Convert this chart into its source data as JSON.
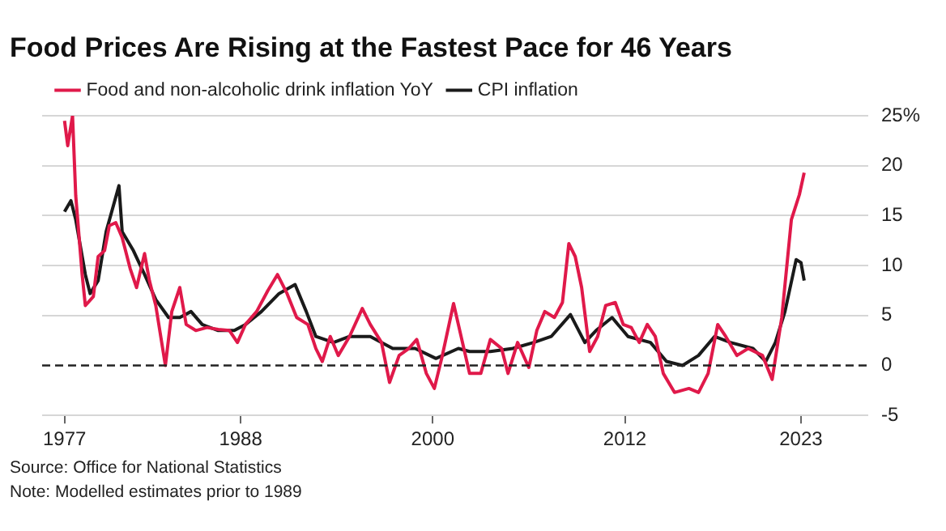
{
  "chart_data": {
    "type": "line",
    "title": "Food Prices Are Rising at the Fastest Pace for 46 Years",
    "annotations": [
      "Source: Office for National Statistics",
      "Note: Modelled estimates prior to 1989"
    ],
    "xlim": [
      1975.6,
      2027.2
    ],
    "xticks": [
      1977,
      1988,
      2000,
      2012,
      2023
    ],
    "ylim": [
      -5,
      25
    ],
    "yticks": [
      -5,
      0,
      5,
      10,
      15,
      20,
      {
        "value": 25,
        "label": "25%"
      }
    ],
    "grid": "y",
    "legend": "top left",
    "marker": "none",
    "line_style": "solid",
    "ref_lines": [
      {
        "axis": "y",
        "value": 0,
        "label": null,
        "color": "#222222",
        "line_style": "dashed"
      }
    ],
    "series": [
      {
        "name": "Food and non-alcoholic drink inflation YoY",
        "color": "#e0194a",
        "x": [
          1977.0,
          1977.2,
          1977.5,
          1977.7,
          1978.1,
          1978.3,
          1978.8,
          1979.1,
          1979.5,
          1979.8,
          1980.2,
          1980.6,
          1981.1,
          1981.5,
          1982.0,
          1982.3,
          1982.7,
          1983.3,
          1983.7,
          1984.2,
          1984.6,
          1985.2,
          1985.9,
          1986.6,
          1987.3,
          1987.8,
          1988.3,
          1989.0,
          1989.7,
          1990.3,
          1990.9,
          1991.5,
          1992.2,
          1992.7,
          1993.1,
          1993.6,
          1994.1,
          1994.8,
          1995.6,
          1996.1,
          1996.8,
          1997.3,
          1997.9,
          1998.5,
          1999.0,
          1999.6,
          2000.1,
          2000.6,
          2001.3,
          2001.6,
          2002.3,
          2003.0,
          2003.6,
          2004.3,
          2004.7,
          2005.3,
          2006.0,
          2006.5,
          2007.0,
          2007.6,
          2008.1,
          2008.5,
          2008.9,
          2009.3,
          2009.8,
          2010.3,
          2010.8,
          2011.4,
          2011.9,
          2012.4,
          2012.9,
          2013.4,
          2013.9,
          2014.4,
          2015.1,
          2016.0,
          2016.6,
          2017.2,
          2017.8,
          2018.3,
          2019.0,
          2019.7,
          2020.6,
          2021.2,
          2021.8,
          2022.4,
          2022.9,
          2023.2
        ],
        "values": [
          24.5,
          22,
          25,
          17,
          9.1,
          6,
          6.9,
          10.9,
          11.5,
          14,
          14.3,
          12.8,
          9.7,
          7.8,
          11.2,
          8.5,
          6,
          0,
          5.4,
          7.8,
          4.1,
          3.5,
          3.8,
          3.6,
          3.5,
          2.3,
          4.1,
          5.4,
          7.5,
          9.1,
          7.2,
          4.8,
          4.1,
          1.7,
          0.4,
          2.9,
          1,
          2.9,
          5.7,
          4.1,
          2.3,
          -1.7,
          1,
          1.7,
          2.6,
          -0.8,
          -2.3,
          1,
          6.2,
          4.1,
          -0.8,
          -0.8,
          2.6,
          1.7,
          -0.8,
          2.3,
          -0.2,
          3.5,
          5.4,
          4.8,
          6.3,
          12.2,
          10.9,
          7.8,
          1.4,
          2.9,
          6,
          6.3,
          4.1,
          3.8,
          2.3,
          4.1,
          2.9,
          -0.8,
          -2.7,
          -2.3,
          -2.7,
          -0.8,
          4.1,
          2.9,
          1,
          1.7,
          1,
          -1.4,
          4.8,
          14.6,
          17.1,
          19.3
        ]
      },
      {
        "name": "CPI inflation",
        "color": "#1a1a1a",
        "x": [
          1977.0,
          1977.4,
          1977.7,
          1978.3,
          1978.6,
          1979.1,
          1979.6,
          1980.4,
          1980.6,
          1981.3,
          1982.0,
          1982.7,
          1983.5,
          1984.2,
          1984.9,
          1985.6,
          1986.6,
          1987.6,
          1988.3,
          1989.3,
          1990.4,
          1991.4,
          1992.1,
          1992.7,
          1993.8,
          1994.8,
          1996.1,
          1997.5,
          1998.9,
          2000.2,
          2001.6,
          2002.3,
          2003.6,
          2005.0,
          2006.3,
          2007.4,
          2008.6,
          2009.5,
          2010.2,
          2011.2,
          2012.2,
          2013.6,
          2014.6,
          2015.6,
          2016.6,
          2017.6,
          2018.6,
          2020.0,
          2020.8,
          2021.4,
          2022.0,
          2022.7,
          2023.0,
          2023.2
        ],
        "values": [
          15.4,
          16.5,
          14.6,
          9.1,
          7.2,
          8.5,
          13.4,
          18,
          13.4,
          11.5,
          9.1,
          6.6,
          4.8,
          4.8,
          5.4,
          4.1,
          3.5,
          3.5,
          4.1,
          5.4,
          7.2,
          8.1,
          5.4,
          2.9,
          2.3,
          2.9,
          2.9,
          1.7,
          1.7,
          0.7,
          1.7,
          1.4,
          1.4,
          1.7,
          2.3,
          2.9,
          5.1,
          2.3,
          3.5,
          4.8,
          2.9,
          2.3,
          0.4,
          0,
          1,
          2.9,
          2.3,
          1.7,
          0.4,
          2.3,
          5.4,
          10.6,
          10.3,
          8.5
        ]
      }
    ]
  }
}
